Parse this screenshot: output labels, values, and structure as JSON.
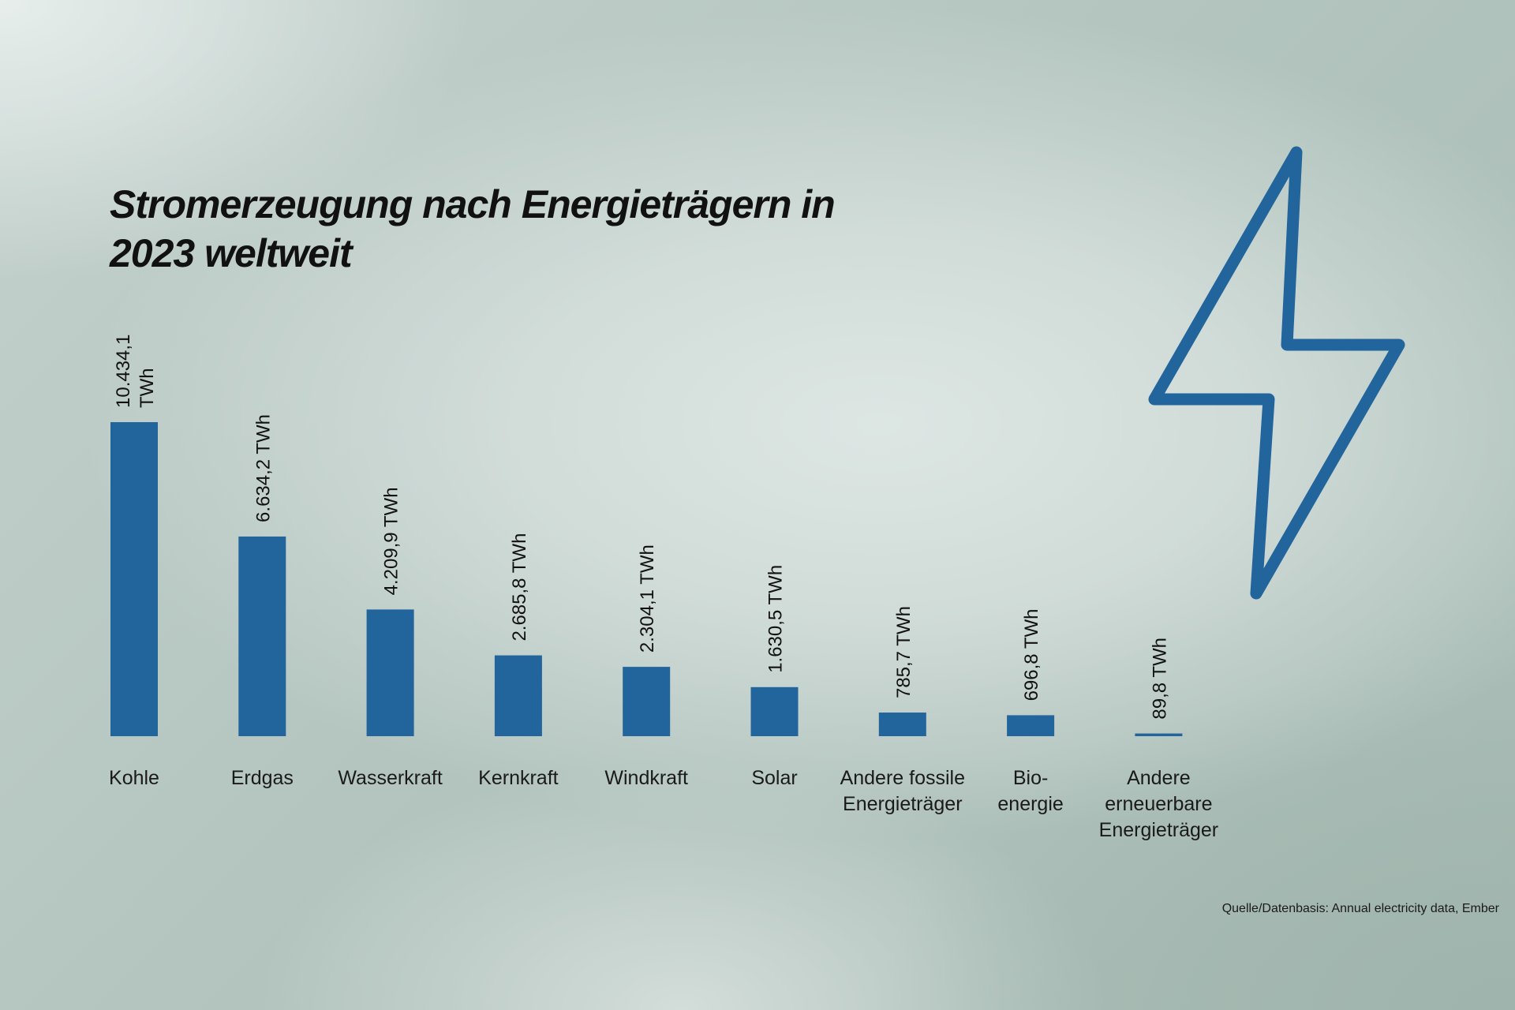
{
  "chart_data": {
    "type": "bar",
    "title": "Stromerzeugung nach Energieträgern in 2023 weltweit",
    "categories": [
      [
        "Kohle"
      ],
      [
        "Erdgas"
      ],
      [
        "Wasserkraft"
      ],
      [
        "Kernkraft"
      ],
      [
        "Windkraft"
      ],
      [
        "Solar"
      ],
      [
        "Andere fossile",
        "Energieträger"
      ],
      [
        "Bio-",
        "energie"
      ],
      [
        "Andere",
        "erneuerbare",
        "Energieträger"
      ]
    ],
    "values": [
      10434.1,
      6634.2,
      4209.9,
      2685.8,
      2304.1,
      1630.5,
      785.7,
      696.8,
      89.8
    ],
    "value_labels": [
      [
        "10.434,1",
        "TWh"
      ],
      [
        "6.634,2 TWh"
      ],
      [
        "4.209,9 TWh"
      ],
      [
        "2.685,8 TWh"
      ],
      [
        "2.304,1 TWh"
      ],
      [
        "1.630,5 TWh"
      ],
      [
        "785,7 TWh"
      ],
      [
        "696,8 TWh"
      ],
      [
        "89,8 TWh"
      ]
    ],
    "unit": "TWh",
    "ylim": [
      0,
      10434.1
    ],
    "grid": false,
    "bar_color": "#22649c"
  },
  "source_note": "Quelle/Datenbasis: Annual electricity data, Ember",
  "decoration": {
    "icon": "lightning-bolt-icon",
    "color": "#22649c"
  }
}
